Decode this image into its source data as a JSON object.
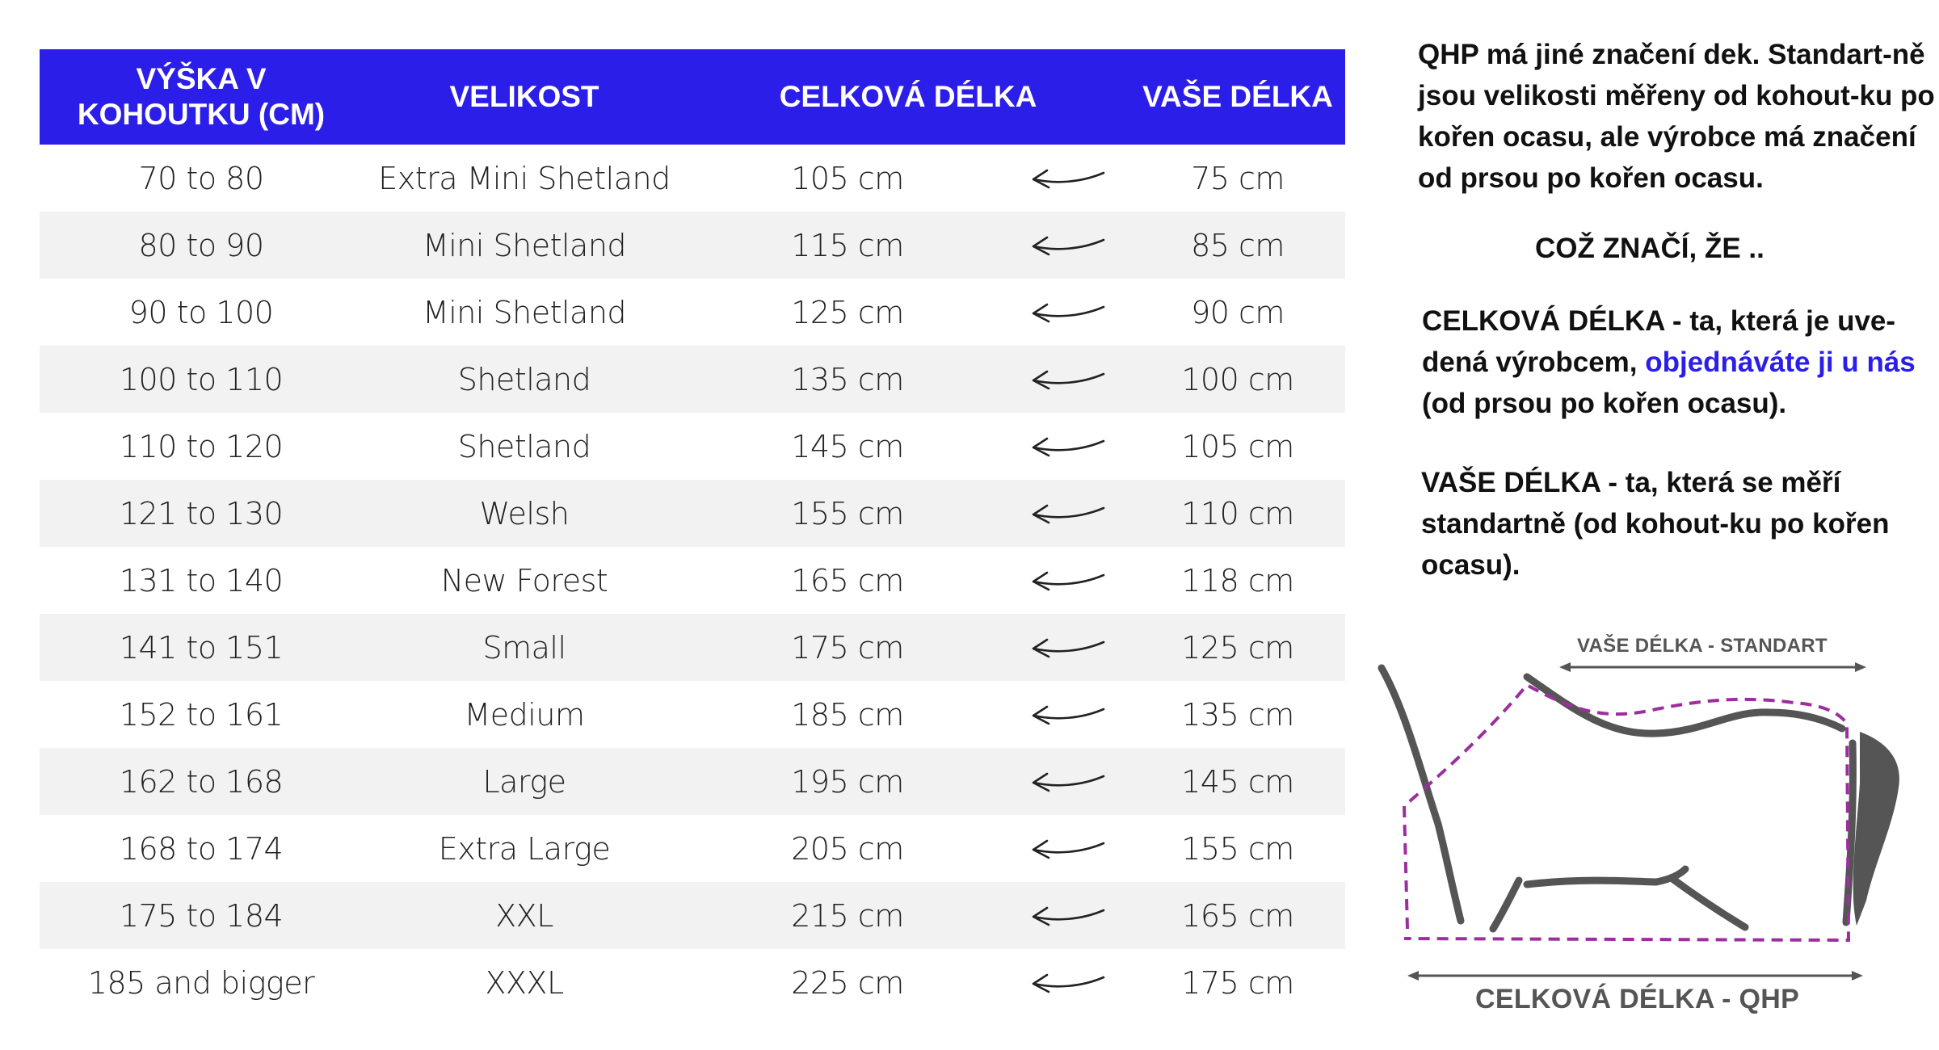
{
  "table": {
    "headers": {
      "height_cm": "VÝŠKA V KOHOUTKU (CM)",
      "size": "VELIKOST",
      "total_length": "CELKOVÁ DÉLKA",
      "your_length": "VAŠE DÉLKA"
    },
    "rows": [
      {
        "height": "70 to 80",
        "size": "Extra Mini Shetland",
        "total": "105 cm",
        "yours": "75 cm"
      },
      {
        "height": "80 to 90",
        "size": "Mini Shetland",
        "total": "115 cm",
        "yours": "85 cm"
      },
      {
        "height": "90 to 100",
        "size": "Mini Shetland",
        "total": "125 cm",
        "yours": "90 cm"
      },
      {
        "height": "100 to 110",
        "size": "Shetland",
        "total": "135 cm",
        "yours": "100 cm"
      },
      {
        "height": "110 to 120",
        "size": "Shetland",
        "total": "145 cm",
        "yours": "105 cm"
      },
      {
        "height": "121 to 130",
        "size": "Welsh",
        "total": "155 cm",
        "yours": "110 cm"
      },
      {
        "height": "131 to 140",
        "size": "New Forest",
        "total": "165 cm",
        "yours": "118 cm"
      },
      {
        "height": "141 to 151",
        "size": "Small",
        "total": "175 cm",
        "yours": "125 cm"
      },
      {
        "height": "152 to 161",
        "size": "Medium",
        "total": "185 cm",
        "yours": "135 cm"
      },
      {
        "height": "162 to 168",
        "size": "Large",
        "total": "195 cm",
        "yours": "145 cm"
      },
      {
        "height": "168 to 174",
        "size": "Extra Large",
        "total": "205 cm",
        "yours": "155 cm"
      },
      {
        "height": "175 to 184",
        "size": "XXL",
        "total": "215 cm",
        "yours": "165 cm"
      },
      {
        "height": "185 and bigger",
        "size": "XXXL",
        "total": "225 cm",
        "yours": "175 cm"
      }
    ]
  },
  "info": {
    "para1": "QHP má jiné značení dek. Standart-ně jsou velikosti měřeny od kohout-ku po kořen ocasu, ale výrobce má značení od prsou po kořen ocasu.",
    "para2": "COŽ ZNAČÍ, ŽE ..",
    "para3_a": "CELKOVÁ DÉLKA - ta, která je uve-dená výrobcem, ",
    "para3_blue": "objednáváte ji u nás",
    "para3_b": " (od prsou po kořen ocasu).",
    "para4": "VAŠE DÉLKA - ta, která se měří standartně (od kohout-ku po kořen ocasu)."
  },
  "diagram": {
    "top_label": "VAŠE DÉLKA - STANDART",
    "bottom_label": "CELKOVÁ DÉLKA -  QHP",
    "colors": {
      "horse": "#555555",
      "dashed_outline": "#9b2f9e",
      "header_blue": "#2b1ee8"
    },
    "icons": [
      "left-arrow-icon",
      "horse-outline-icon",
      "double-arrow-icon"
    ]
  }
}
